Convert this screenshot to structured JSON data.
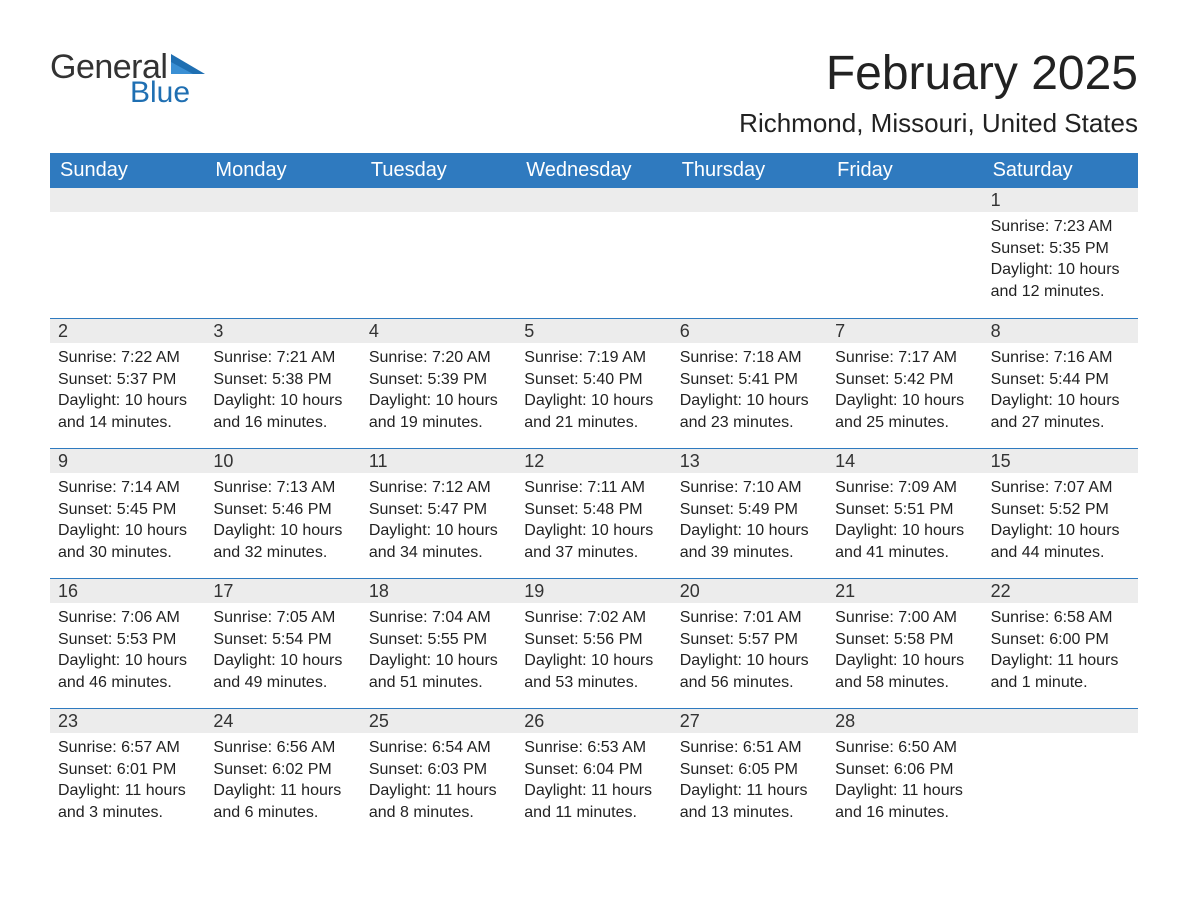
{
  "brand": {
    "word1": "General",
    "word2": "Blue",
    "logo_color": "#1f6fb2"
  },
  "title": "February 2025",
  "location": "Richmond, Missouri, United States",
  "colors": {
    "header_bg": "#2f7abf",
    "header_text": "#ffffff",
    "strip_bg": "#ececec",
    "row_border": "#2f7abf",
    "text": "#222222",
    "background": "#ffffff"
  },
  "typography": {
    "title_fontsize": 48,
    "location_fontsize": 26,
    "weekday_fontsize": 20,
    "daynum_fontsize": 18,
    "body_fontsize": 16
  },
  "weekdays": [
    "Sunday",
    "Monday",
    "Tuesday",
    "Wednesday",
    "Thursday",
    "Friday",
    "Saturday"
  ],
  "weeks": [
    [
      null,
      null,
      null,
      null,
      null,
      null,
      {
        "n": "1",
        "sr": "Sunrise: 7:23 AM",
        "ss": "Sunset: 5:35 PM",
        "dl": "Daylight: 10 hours and 12 minutes."
      }
    ],
    [
      {
        "n": "2",
        "sr": "Sunrise: 7:22 AM",
        "ss": "Sunset: 5:37 PM",
        "dl": "Daylight: 10 hours and 14 minutes."
      },
      {
        "n": "3",
        "sr": "Sunrise: 7:21 AM",
        "ss": "Sunset: 5:38 PM",
        "dl": "Daylight: 10 hours and 16 minutes."
      },
      {
        "n": "4",
        "sr": "Sunrise: 7:20 AM",
        "ss": "Sunset: 5:39 PM",
        "dl": "Daylight: 10 hours and 19 minutes."
      },
      {
        "n": "5",
        "sr": "Sunrise: 7:19 AM",
        "ss": "Sunset: 5:40 PM",
        "dl": "Daylight: 10 hours and 21 minutes."
      },
      {
        "n": "6",
        "sr": "Sunrise: 7:18 AM",
        "ss": "Sunset: 5:41 PM",
        "dl": "Daylight: 10 hours and 23 minutes."
      },
      {
        "n": "7",
        "sr": "Sunrise: 7:17 AM",
        "ss": "Sunset: 5:42 PM",
        "dl": "Daylight: 10 hours and 25 minutes."
      },
      {
        "n": "8",
        "sr": "Sunrise: 7:16 AM",
        "ss": "Sunset: 5:44 PM",
        "dl": "Daylight: 10 hours and 27 minutes."
      }
    ],
    [
      {
        "n": "9",
        "sr": "Sunrise: 7:14 AM",
        "ss": "Sunset: 5:45 PM",
        "dl": "Daylight: 10 hours and 30 minutes."
      },
      {
        "n": "10",
        "sr": "Sunrise: 7:13 AM",
        "ss": "Sunset: 5:46 PM",
        "dl": "Daylight: 10 hours and 32 minutes."
      },
      {
        "n": "11",
        "sr": "Sunrise: 7:12 AM",
        "ss": "Sunset: 5:47 PM",
        "dl": "Daylight: 10 hours and 34 minutes."
      },
      {
        "n": "12",
        "sr": "Sunrise: 7:11 AM",
        "ss": "Sunset: 5:48 PM",
        "dl": "Daylight: 10 hours and 37 minutes."
      },
      {
        "n": "13",
        "sr": "Sunrise: 7:10 AM",
        "ss": "Sunset: 5:49 PM",
        "dl": "Daylight: 10 hours and 39 minutes."
      },
      {
        "n": "14",
        "sr": "Sunrise: 7:09 AM",
        "ss": "Sunset: 5:51 PM",
        "dl": "Daylight: 10 hours and 41 minutes."
      },
      {
        "n": "15",
        "sr": "Sunrise: 7:07 AM",
        "ss": "Sunset: 5:52 PM",
        "dl": "Daylight: 10 hours and 44 minutes."
      }
    ],
    [
      {
        "n": "16",
        "sr": "Sunrise: 7:06 AM",
        "ss": "Sunset: 5:53 PM",
        "dl": "Daylight: 10 hours and 46 minutes."
      },
      {
        "n": "17",
        "sr": "Sunrise: 7:05 AM",
        "ss": "Sunset: 5:54 PM",
        "dl": "Daylight: 10 hours and 49 minutes."
      },
      {
        "n": "18",
        "sr": "Sunrise: 7:04 AM",
        "ss": "Sunset: 5:55 PM",
        "dl": "Daylight: 10 hours and 51 minutes."
      },
      {
        "n": "19",
        "sr": "Sunrise: 7:02 AM",
        "ss": "Sunset: 5:56 PM",
        "dl": "Daylight: 10 hours and 53 minutes."
      },
      {
        "n": "20",
        "sr": "Sunrise: 7:01 AM",
        "ss": "Sunset: 5:57 PM",
        "dl": "Daylight: 10 hours and 56 minutes."
      },
      {
        "n": "21",
        "sr": "Sunrise: 7:00 AM",
        "ss": "Sunset: 5:58 PM",
        "dl": "Daylight: 10 hours and 58 minutes."
      },
      {
        "n": "22",
        "sr": "Sunrise: 6:58 AM",
        "ss": "Sunset: 6:00 PM",
        "dl": "Daylight: 11 hours and 1 minute."
      }
    ],
    [
      {
        "n": "23",
        "sr": "Sunrise: 6:57 AM",
        "ss": "Sunset: 6:01 PM",
        "dl": "Daylight: 11 hours and 3 minutes."
      },
      {
        "n": "24",
        "sr": "Sunrise: 6:56 AM",
        "ss": "Sunset: 6:02 PM",
        "dl": "Daylight: 11 hours and 6 minutes."
      },
      {
        "n": "25",
        "sr": "Sunrise: 6:54 AM",
        "ss": "Sunset: 6:03 PM",
        "dl": "Daylight: 11 hours and 8 minutes."
      },
      {
        "n": "26",
        "sr": "Sunrise: 6:53 AM",
        "ss": "Sunset: 6:04 PM",
        "dl": "Daylight: 11 hours and 11 minutes."
      },
      {
        "n": "27",
        "sr": "Sunrise: 6:51 AM",
        "ss": "Sunset: 6:05 PM",
        "dl": "Daylight: 11 hours and 13 minutes."
      },
      {
        "n": "28",
        "sr": "Sunrise: 6:50 AM",
        "ss": "Sunset: 6:06 PM",
        "dl": "Daylight: 11 hours and 16 minutes."
      },
      null
    ]
  ]
}
